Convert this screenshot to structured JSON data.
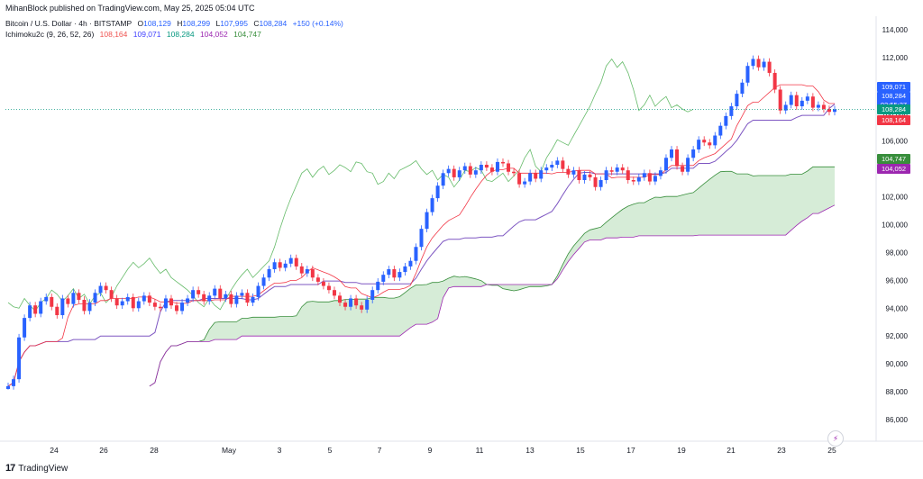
{
  "header": {
    "published": "MihanBlock published on TradingView.com, May 25, 2025 05:04 UTC"
  },
  "legend": {
    "symbol": "Bitcoin / U.S. Dollar · 4h · BITSTAMP",
    "o_label": "O",
    "o": "108,129",
    "h_label": "H",
    "h": "108,299",
    "l_label": "L",
    "l": "107,995",
    "c_label": "C",
    "c": "108,284",
    "change": "+150 (+0.14%)",
    "indicator": "Ichimoku2c (9, 26, 52, 26)",
    "ind_values": [
      "108,164",
      "109,071",
      "108,284",
      "104,052",
      "104,747"
    ],
    "ind_colors": [
      "#ef5350",
      "#3f3fff",
      "#089981",
      "#9c27b0",
      "#388e3c"
    ]
  },
  "price_axis": {
    "ticks": [
      "114,000",
      "112,000",
      "110,000",
      "108,000",
      "106,000",
      "104,000",
      "102,000",
      "100,000",
      "98,000",
      "96,000",
      "94,000",
      "92,000",
      "90,000",
      "88,000",
      "86,000"
    ]
  },
  "time_axis": {
    "labels": [
      "24",
      "26",
      "28",
      "May",
      "3",
      "5",
      "7",
      "9",
      "11",
      "13",
      "15",
      "17",
      "19",
      "21",
      "23",
      "25"
    ]
  },
  "price_tags": [
    {
      "text": "109,071",
      "color": "#2962ff",
      "price": 109071
    },
    {
      "text": "108,284",
      "color": "#2962ff",
      "price": 108284,
      "sub": "02:55:27"
    },
    {
      "text": "108,284",
      "color": "#089981",
      "price": 108284
    },
    {
      "text": "108,164",
      "color": "#f23645",
      "price": 108164
    },
    {
      "text": "104,747",
      "color": "#388e3c",
      "price": 104747
    },
    {
      "text": "104,052",
      "color": "#9c27b0",
      "price": 104052
    }
  ],
  "countdown": "02:55:27",
  "footer": {
    "brand": "TradingView"
  },
  "colors": {
    "up": "#2962ff",
    "down": "#f23645",
    "tenkan": "#f23645",
    "kijun": "#7e57c2",
    "chikou": "#66bb6a",
    "span_a": "#388e3c",
    "span_b": "#9c27b0",
    "cloud": "#c8e6c9"
  },
  "chart_data": {
    "type": "candlestick",
    "ylim": [
      85000,
      115000
    ],
    "closes": [
      88400,
      88900,
      91900,
      93300,
      94200,
      93600,
      94500,
      94800,
      94100,
      93500,
      94700,
      94300,
      95100,
      94600,
      93800,
      94400,
      95100,
      95600,
      95300,
      94700,
      94200,
      94500,
      94800,
      94000,
      94500,
      94900,
      94400,
      94100,
      94000,
      94700,
      94200,
      93800,
      94400,
      94700,
      95300,
      95000,
      94500,
      94900,
      95400,
      94700,
      95000,
      94300,
      94900,
      95100,
      94400,
      94800,
      95600,
      96200,
      96800,
      97300,
      96900,
      97200,
      97600,
      97000,
      96500,
      96800,
      96200,
      95900,
      95600,
      95300,
      94900,
      94400,
      94100,
      94700,
      94200,
      93900,
      94600,
      95300,
      95900,
      96400,
      96800,
      96200,
      96600,
      97000,
      97400,
      98400,
      99700,
      100900,
      101900,
      102800,
      103700,
      104000,
      103400,
      103900,
      104200,
      103600,
      103900,
      104300,
      104100,
      103800,
      104500,
      104400,
      103800,
      103700,
      102900,
      103100,
      103700,
      103300,
      103900,
      104100,
      104300,
      104600,
      104000,
      103600,
      103900,
      103200,
      103600,
      103400,
      102700,
      103200,
      103900,
      103800,
      104100,
      103900,
      103200,
      103100,
      103400,
      103700,
      103100,
      103500,
      103900,
      104800,
      105400,
      104200,
      103800,
      104800,
      105400,
      106100,
      105900,
      105700,
      106400,
      107100,
      107800,
      108500,
      109400,
      110200,
      111400,
      111900,
      111300,
      111700,
      110900,
      109700,
      108200,
      108600,
      109300,
      108500,
      108900,
      109200,
      108400,
      108600,
      108300,
      108100,
      108284
    ]
  }
}
